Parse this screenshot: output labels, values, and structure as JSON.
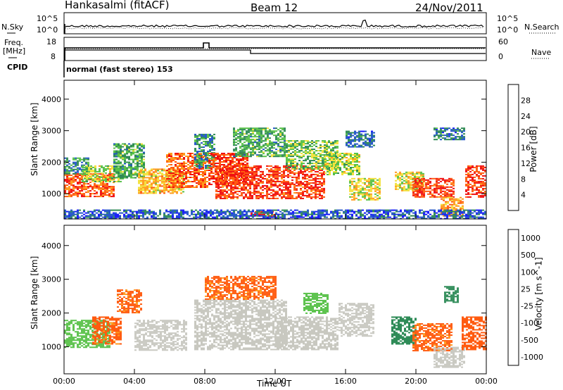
{
  "header": {
    "station": "Hankasalmi (fitACF)",
    "beam": "Beam 12",
    "date": "24/Nov/2011"
  },
  "top_panel": {
    "left_label": "N.Sky",
    "left_ticks": [
      "10^5",
      "10^0"
    ],
    "right_ticks": [
      "10^5",
      "10^0"
    ],
    "right_label": "N.Search"
  },
  "freq_panel": {
    "left_label_line1": "Freq.",
    "left_label_line2": "[MHz]",
    "left_ticks": [
      "18",
      "8"
    ],
    "right_ticks": [
      "60",
      "0"
    ],
    "right_label": "Nave"
  },
  "cpid": {
    "label": "CPID",
    "text": "normal (fast stereo) 153"
  },
  "chart_data": [
    {
      "type": "heatmap",
      "title": "",
      "xlabel": "Time UT",
      "ylabel": "Slant Range [km]",
      "xlim": [
        "00:00",
        "24:00"
      ],
      "ylim": [
        200,
        4600
      ],
      "x_ticks": [
        "00:00",
        "04:00",
        "08:00",
        "12:00",
        "16:00",
        "20:00",
        "00:00"
      ],
      "y_ticks": [
        1000,
        2000,
        3000,
        4000
      ],
      "colorbar": {
        "label": "Power [dB]",
        "ticks": [
          4,
          8,
          12,
          16,
          20,
          24,
          28
        ],
        "range": [
          0,
          32
        ],
        "colors": [
          "#1515ff",
          "#2155c8",
          "#2f8a55",
          "#58c148",
          "#f3e13b",
          "#ff9a1c",
          "#ff5b10",
          "#f01010"
        ]
      },
      "regions": [
        {
          "t0": 0.0,
          "t1": 2.8,
          "r0": 900,
          "r1": 1650,
          "value": 26
        },
        {
          "t0": 0.0,
          "t1": 1.4,
          "r0": 1650,
          "r1": 2150,
          "value": 10
        },
        {
          "t0": 1.0,
          "t1": 3.4,
          "r0": 1400,
          "r1": 1900,
          "value": 16
        },
        {
          "t0": 2.8,
          "t1": 4.6,
          "r0": 1500,
          "r1": 2600,
          "value": 12
        },
        {
          "t0": 4.2,
          "t1": 6.8,
          "r0": 1000,
          "r1": 1800,
          "value": 20
        },
        {
          "t0": 5.8,
          "t1": 8.2,
          "r0": 1200,
          "r1": 2300,
          "value": 26
        },
        {
          "t0": 7.4,
          "t1": 8.6,
          "r0": 1800,
          "r1": 2900,
          "value": 10
        },
        {
          "t0": 8.2,
          "t1": 10.4,
          "r0": 1300,
          "r1": 2300,
          "value": 28
        },
        {
          "t0": 8.6,
          "t1": 14.8,
          "r0": 850,
          "r1": 1900,
          "value": 28
        },
        {
          "t0": 9.6,
          "t1": 12.6,
          "r0": 2200,
          "r1": 3100,
          "value": 12
        },
        {
          "t0": 10.6,
          "t1": 12.0,
          "r0": 300,
          "r1": 450,
          "value": 28
        },
        {
          "t0": 12.6,
          "t1": 15.6,
          "r0": 1800,
          "r1": 2700,
          "value": 14
        },
        {
          "t0": 14.8,
          "t1": 16.8,
          "r0": 1600,
          "r1": 2300,
          "value": 16
        },
        {
          "t0": 16.2,
          "t1": 18.0,
          "r0": 800,
          "r1": 1500,
          "value": 18
        },
        {
          "t0": 16.0,
          "t1": 17.6,
          "r0": 2500,
          "r1": 3000,
          "value": 8
        },
        {
          "t0": 18.8,
          "t1": 20.4,
          "r0": 1100,
          "r1": 1700,
          "value": 18
        },
        {
          "t0": 19.8,
          "t1": 22.2,
          "r0": 900,
          "r1": 1500,
          "value": 28
        },
        {
          "t0": 21.4,
          "t1": 22.6,
          "r0": 300,
          "r1": 900,
          "value": 22
        },
        {
          "t0": 22.8,
          "t1": 24.0,
          "r0": 900,
          "r1": 1900,
          "value": 28
        },
        {
          "t0": 21.0,
          "t1": 22.8,
          "r0": 2700,
          "r1": 3100,
          "value": 8
        },
        {
          "t0": 0.0,
          "t1": 24.0,
          "r0": 200,
          "r1": 500,
          "value": 6
        }
      ]
    },
    {
      "type": "heatmap",
      "title": "",
      "xlabel": "Time UT",
      "ylabel": "Slant Range [km]",
      "xlim": [
        "00:00",
        "24:00"
      ],
      "ylim": [
        200,
        4600
      ],
      "x_ticks": [
        "00:00",
        "04:00",
        "08:00",
        "12:00",
        "16:00",
        "20:00",
        "00:00"
      ],
      "y_ticks": [
        1000,
        2000,
        3000,
        4000
      ],
      "colorbar": {
        "label": "Velocity [m s^-1]",
        "ticks": [
          1000,
          500,
          100,
          25,
          -25,
          -100,
          -500,
          -1000
        ],
        "colors": [
          "#1f4fc8",
          "#2f8a55",
          "#2e8b57",
          "#58c148",
          "#c8c8c0",
          "#ff9a1c",
          "#ff5b10",
          "#f01010"
        ]
      },
      "regions": [
        {
          "t0": 0.0,
          "t1": 2.6,
          "r0": 1000,
          "r1": 1800,
          "value": 60
        },
        {
          "t0": 1.6,
          "t1": 3.2,
          "r0": 1100,
          "r1": 1900,
          "value": -150
        },
        {
          "t0": 3.0,
          "t1": 4.4,
          "r0": 2000,
          "r1": 2700,
          "value": -150
        },
        {
          "t0": 4.0,
          "t1": 7.0,
          "r0": 900,
          "r1": 1800,
          "value": 0
        },
        {
          "t0": 7.4,
          "t1": 12.6,
          "r0": 900,
          "r1": 2400,
          "value": 0
        },
        {
          "t0": 8.0,
          "t1": 12.0,
          "r0": 2400,
          "r1": 3100,
          "value": -150
        },
        {
          "t0": 12.0,
          "t1": 15.6,
          "r0": 900,
          "r1": 1900,
          "value": 0
        },
        {
          "t0": 13.6,
          "t1": 15.0,
          "r0": 2000,
          "r1": 2600,
          "value": 60
        },
        {
          "t0": 15.6,
          "t1": 17.6,
          "r0": 1300,
          "r1": 2300,
          "value": 0
        },
        {
          "t0": 18.6,
          "t1": 20.0,
          "r0": 1100,
          "r1": 1900,
          "value": 200
        },
        {
          "t0": 19.8,
          "t1": 22.0,
          "r0": 900,
          "r1": 1700,
          "value": -150
        },
        {
          "t0": 21.0,
          "t1": 22.8,
          "r0": 400,
          "r1": 1000,
          "value": 0
        },
        {
          "t0": 22.6,
          "t1": 24.0,
          "r0": 900,
          "r1": 1900,
          "value": -300
        },
        {
          "t0": 21.6,
          "t1": 22.4,
          "r0": 2300,
          "r1": 2800,
          "value": 200
        }
      ]
    }
  ]
}
